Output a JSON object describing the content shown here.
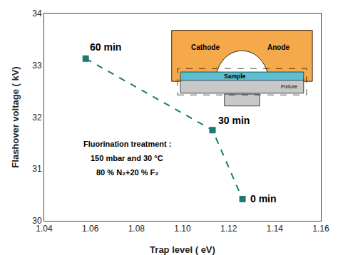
{
  "chart_data": {
    "type": "line",
    "x": [
      1.058,
      1.113,
      1.126
    ],
    "values": [
      33.13,
      31.75,
      30.42
    ],
    "labels": [
      "60 min",
      "30 min",
      "0 min"
    ],
    "color": "#1a7a72",
    "marker": "square",
    "line_style": "dash",
    "xlabel": "Trap level ( eV)",
    "ylabel": "Flashover voltage ( kV)",
    "xlim": [
      1.04,
      1.16
    ],
    "ylim": [
      30,
      34
    ],
    "xticks": [
      1.04,
      1.06,
      1.08,
      {
        "value": 1.1,
        "label": "1.10"
      },
      1.12,
      1.14,
      1.16
    ],
    "yticks": [
      30,
      31,
      32,
      33,
      34
    ],
    "grid": false,
    "annotations": [
      "Fluorination treatment :",
      "150 mbar and 30 °C",
      "80 % N₂+20 % F₂"
    ],
    "diagram": {
      "labels": [
        "Cathode",
        "Anode",
        "Sample",
        "Fixture"
      ],
      "colors": [
        "#F5A94A",
        "#5BBFCF",
        "#C8C8C8"
      ]
    }
  }
}
